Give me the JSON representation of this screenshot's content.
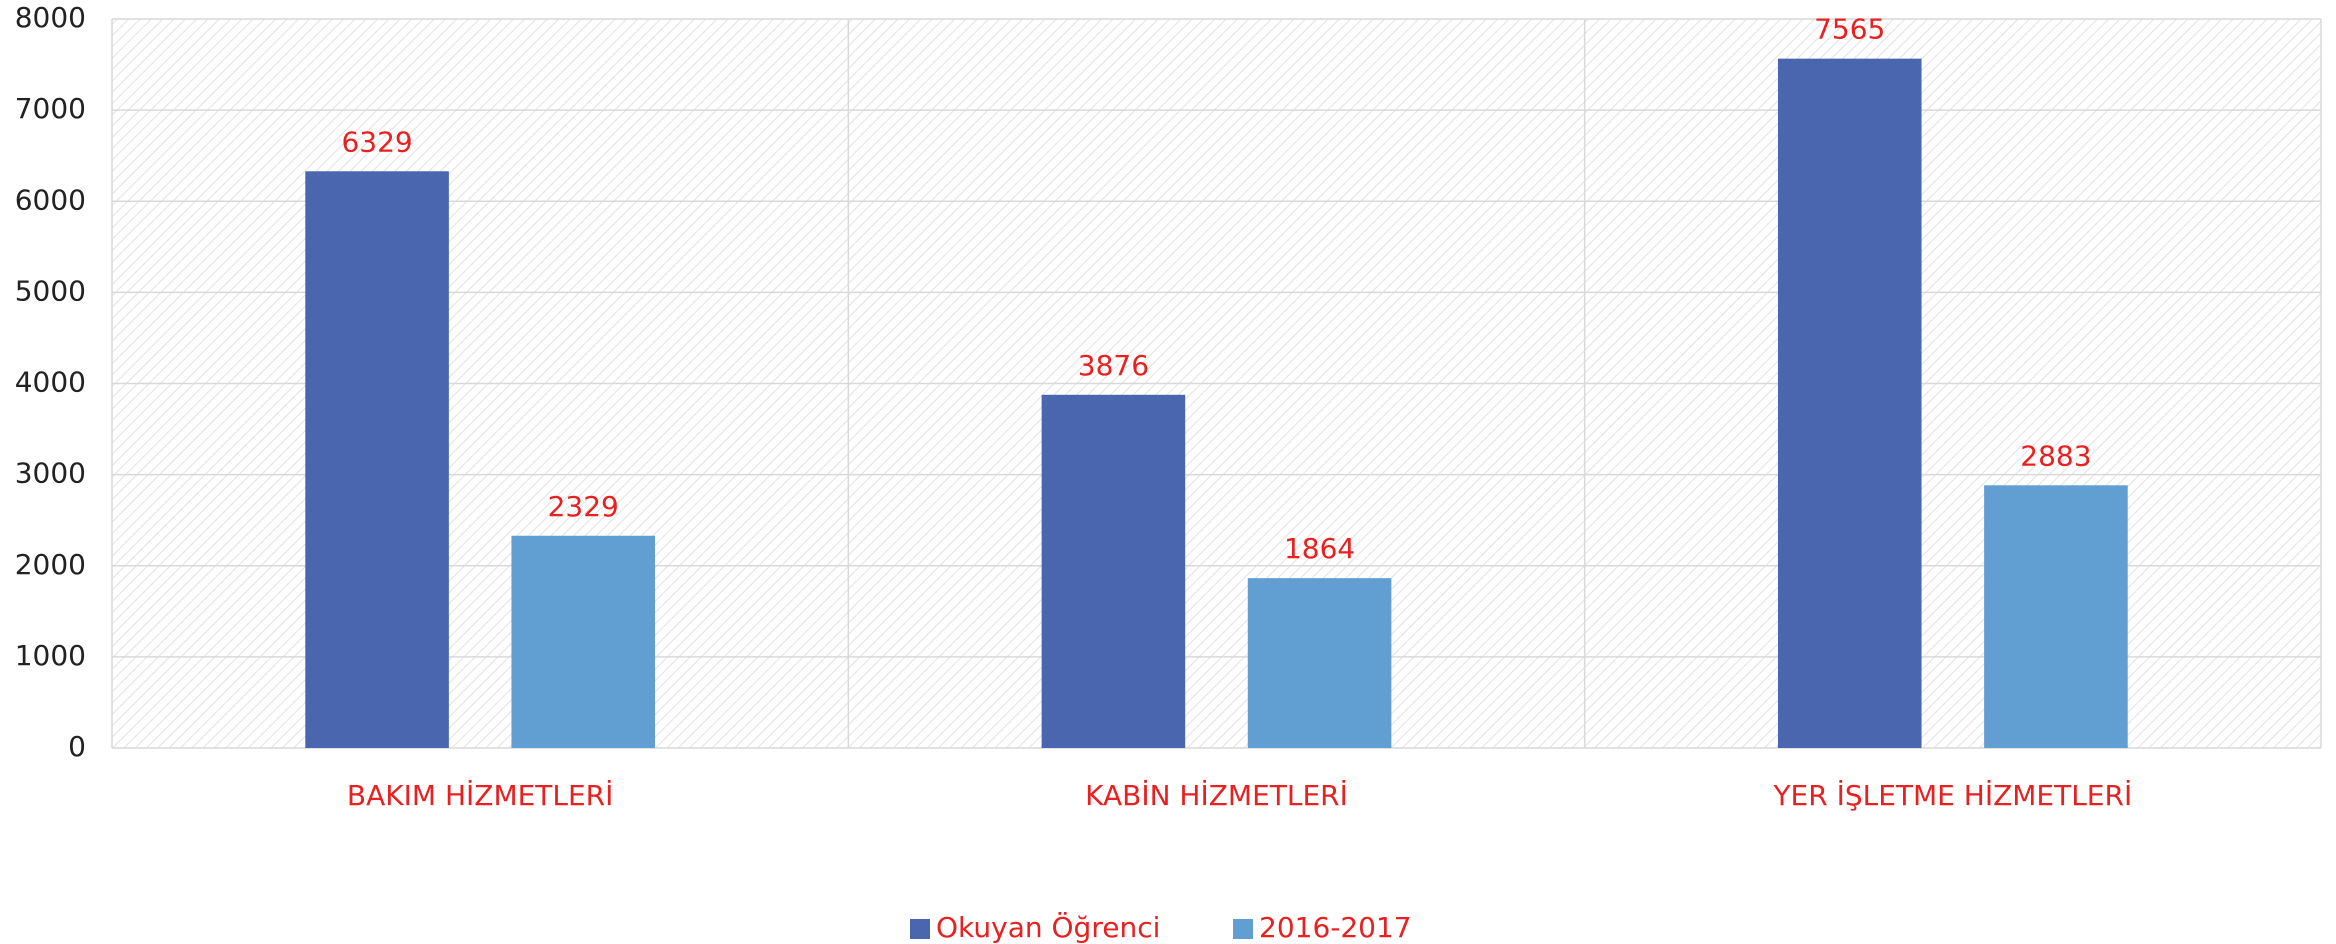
{
  "chart_data": {
    "type": "bar",
    "categories": [
      "BAKIM HİZMETLERİ",
      "KABİN HİZMETLERİ",
      "YER İŞLETME HİZMETLERİ"
    ],
    "series": [
      {
        "name": "Okuyan Öğrenci",
        "color": "#4a66ae",
        "values": [
          6329,
          3876,
          7565
        ]
      },
      {
        "name": "2016-2017",
        "color": "#619ed2",
        "values": [
          2329,
          1864,
          2883
        ]
      }
    ],
    "ylim": [
      0,
      8000
    ],
    "yticks": [
      0,
      1000,
      2000,
      3000,
      4000,
      5000,
      6000,
      7000,
      8000
    ],
    "grid": true,
    "legend": "bottom"
  }
}
